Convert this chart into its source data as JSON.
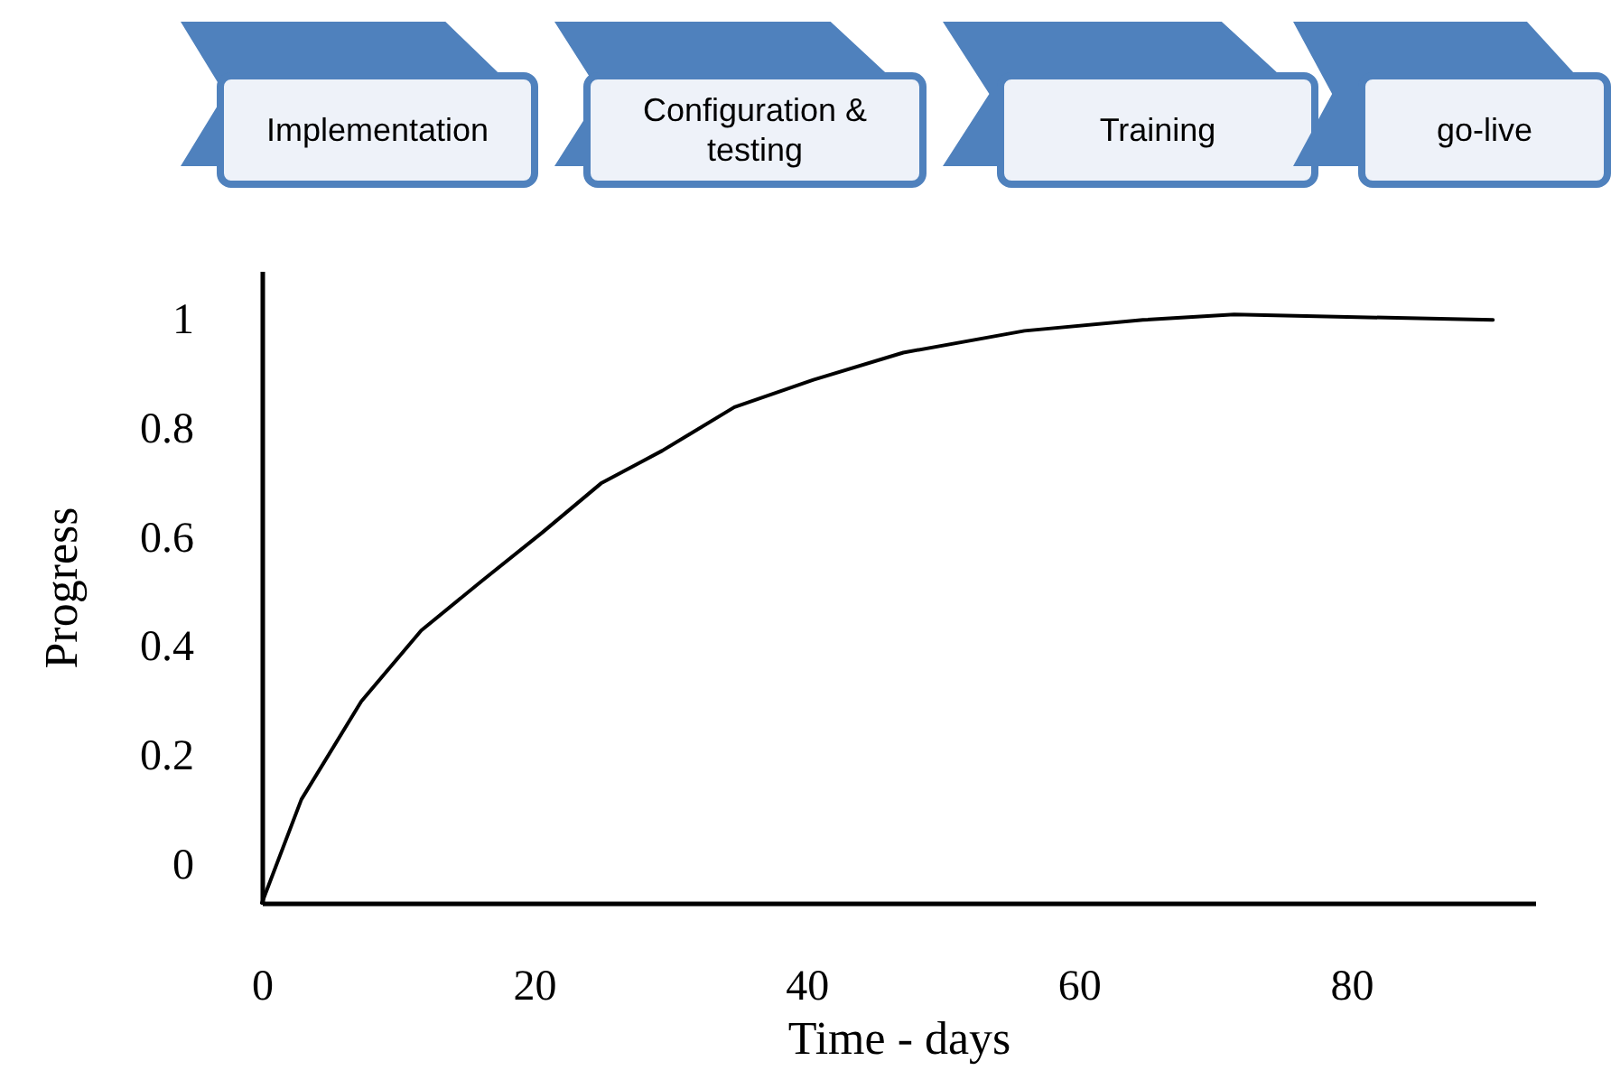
{
  "chart_data": {
    "type": "line",
    "annotations": [
      "Implementation",
      "Configuration & testing",
      "Training",
      "go-live"
    ],
    "xlabel": "Time - days",
    "ylabel": "Progress",
    "x": [
      0,
      2.9,
      7.3,
      11.7,
      16.1,
      20.6,
      24.9,
      29.4,
      34.7,
      40.5,
      47.1,
      56,
      64.7,
      71.4,
      90.4
    ],
    "series": [
      {
        "color": "#000000",
        "values": [
          -0.07,
          0.12,
          0.3,
          0.43,
          0.52,
          0.61,
          0.7,
          0.76,
          0.84,
          0.89,
          0.94,
          0.98,
          1.0,
          1.01,
          1.0
        ]
      }
    ],
    "xlim": [
      0,
      93.5
    ],
    "ylim": [
      -0.07,
      1.09
    ],
    "xticks": [
      0,
      20,
      40,
      60,
      80
    ],
    "yticks": [
      0,
      0.2,
      0.4,
      0.6,
      0.8,
      1
    ],
    "grid": false,
    "marker": "none",
    "line_style": "solid"
  }
}
